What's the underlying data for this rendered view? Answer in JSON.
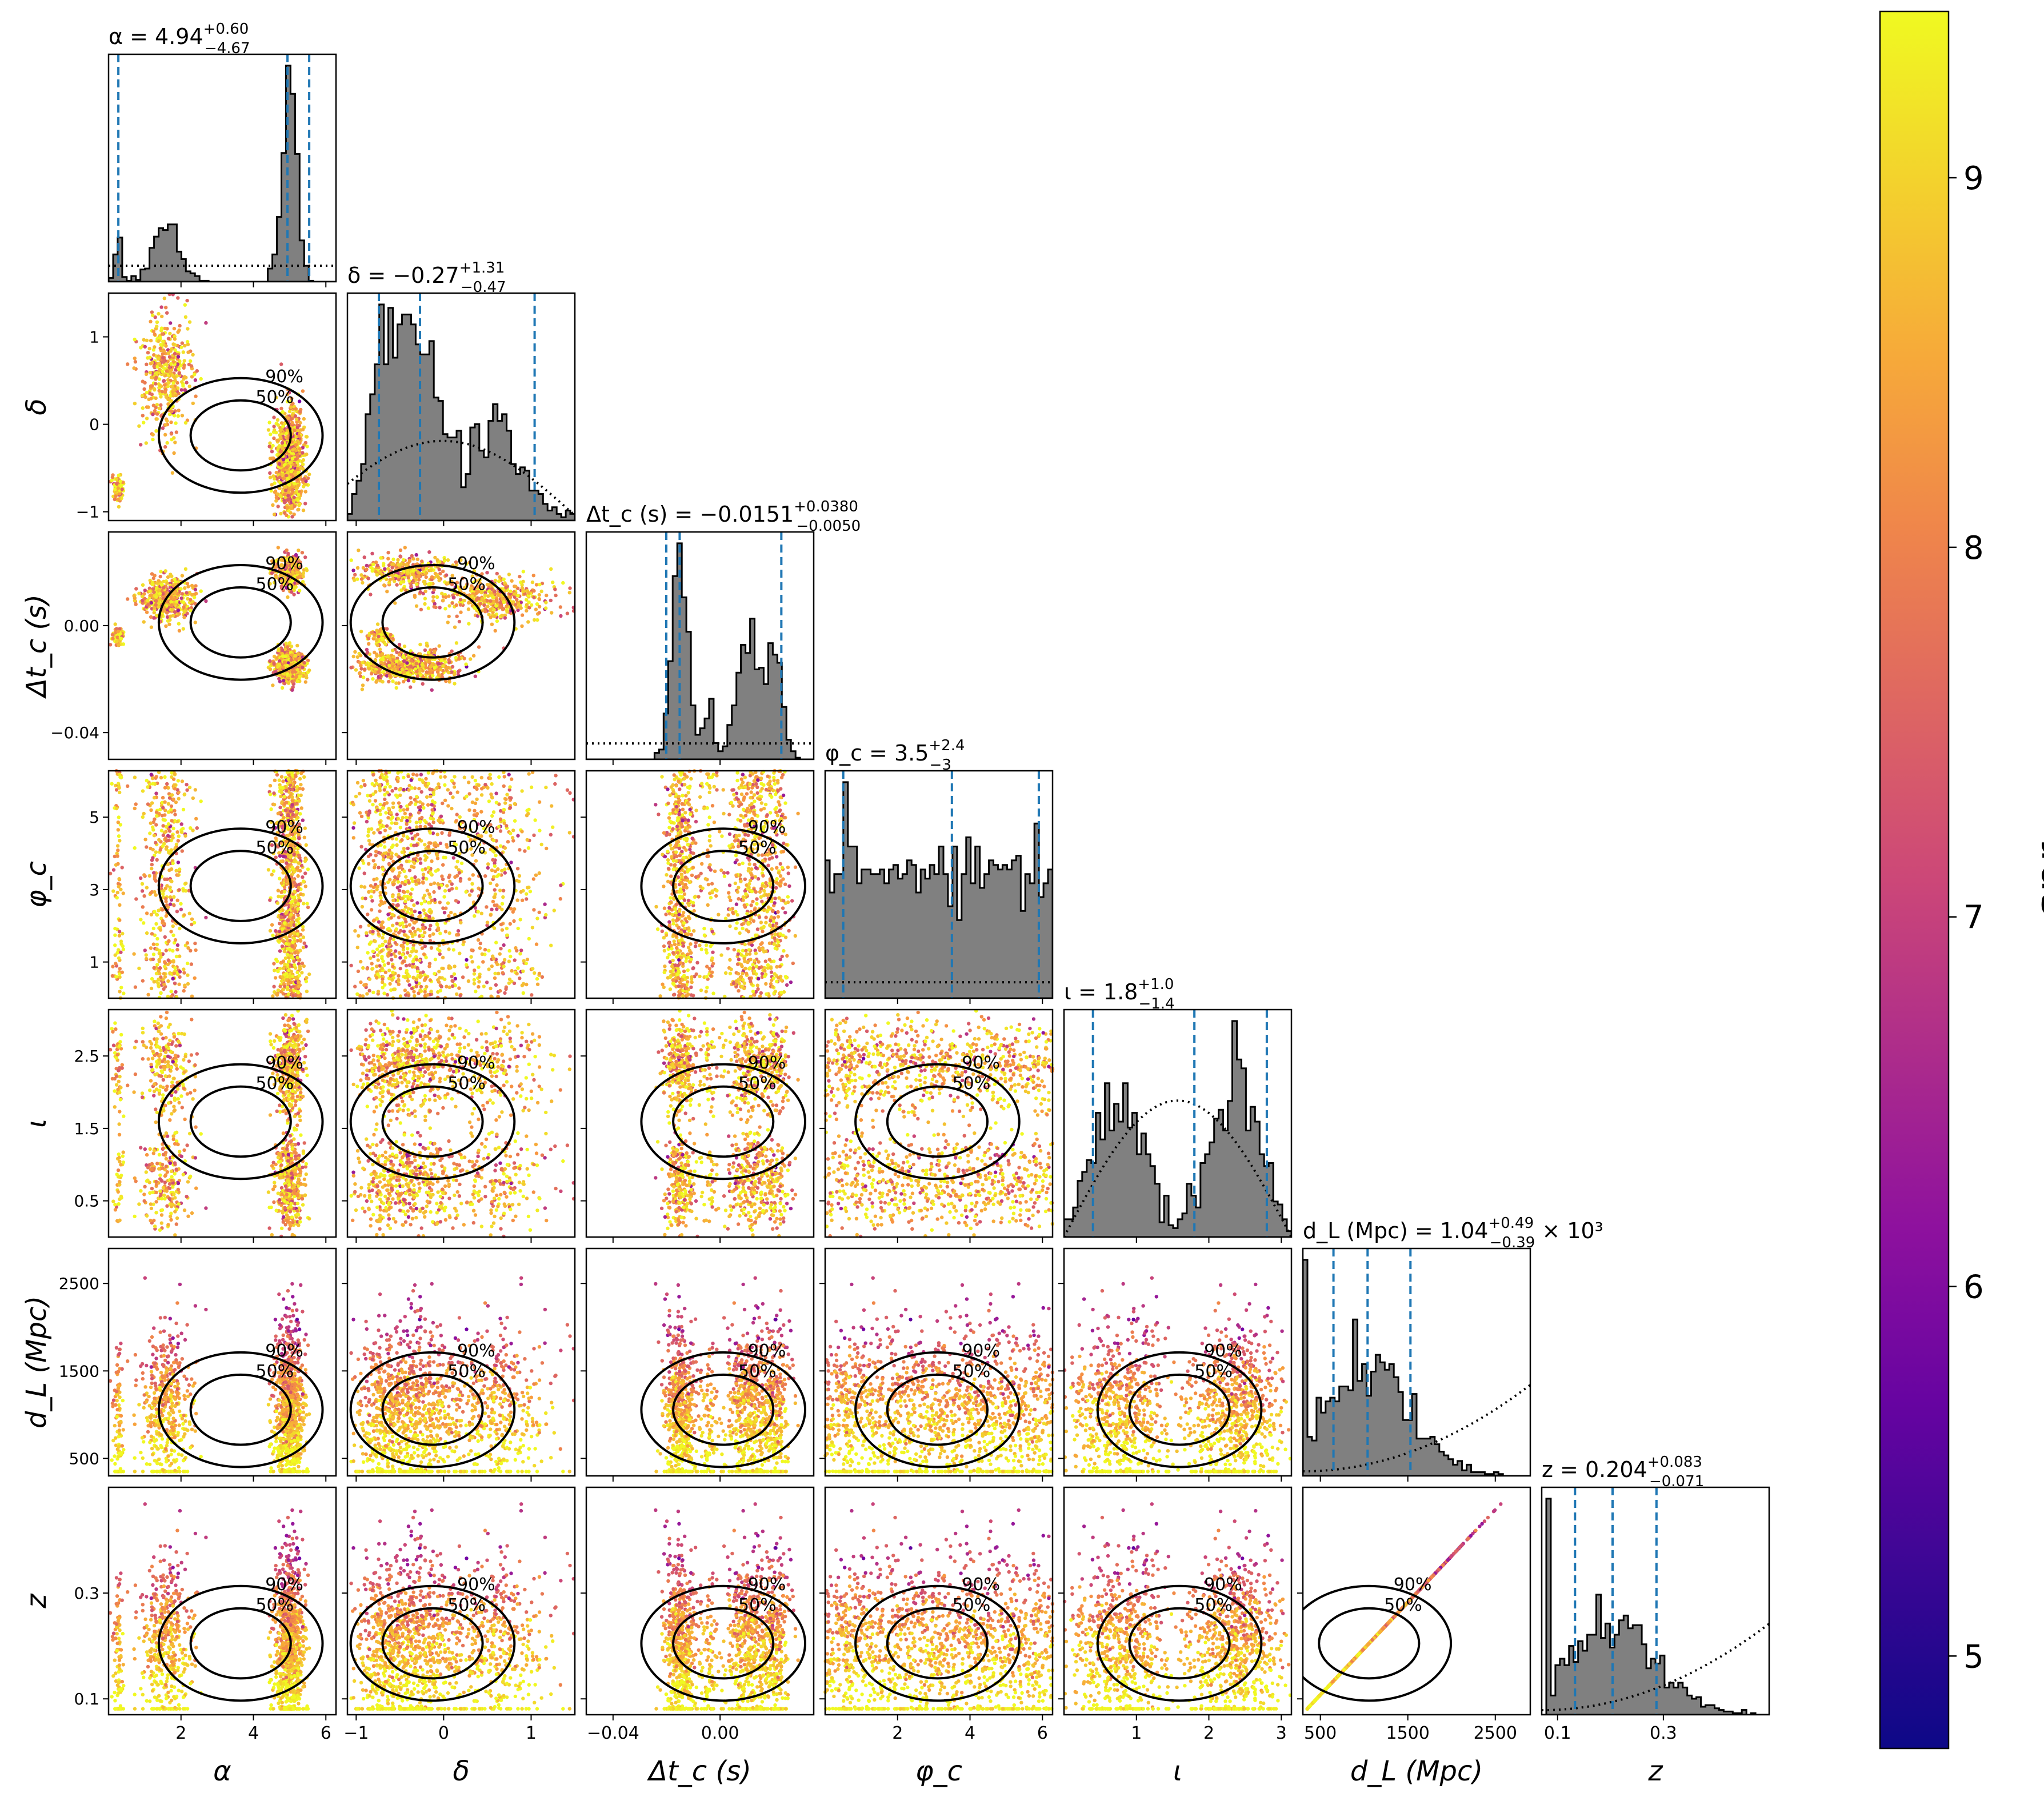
{
  "chart_data": {
    "type": "corner",
    "parameters": [
      {
        "key": "alpha",
        "axis_label": "α",
        "title_text": "α = 4.94",
        "plus": "+0.60",
        "minus": "−4.67",
        "suffix": "",
        "range": [
          0,
          6.28
        ],
        "ticks": [
          2,
          4,
          6
        ],
        "tick_labels": [
          "2",
          "4",
          "6"
        ],
        "quantiles": [
          0.27,
          4.94,
          5.54
        ],
        "prior": "flat"
      },
      {
        "key": "delta",
        "axis_label": "δ",
        "title_text": "δ = −0.27",
        "plus": "+1.31",
        "minus": "−0.47",
        "suffix": "",
        "range": [
          -1.1,
          1.5
        ],
        "ticks": [
          -1,
          0,
          1
        ],
        "tick_labels": [
          "−1",
          "0",
          "1"
        ],
        "quantiles": [
          -0.74,
          -0.27,
          1.04
        ],
        "prior": "cosine"
      },
      {
        "key": "dtc",
        "axis_label": "Δt_c (s)",
        "title_text": "Δt_c (s) = −0.0151",
        "plus": "+0.0380",
        "minus": "−0.0050",
        "suffix": "",
        "range": [
          -0.05,
          0.035
        ],
        "ticks": [
          -0.04,
          0.0
        ],
        "tick_labels": [
          "−0.04",
          "0.00"
        ],
        "quantiles": [
          -0.0201,
          -0.0151,
          0.0229
        ],
        "prior": "flat"
      },
      {
        "key": "phic",
        "axis_label": "φ_c",
        "title_text": "φ_c = 3.5",
        "plus": "+2.4",
        "minus": "−3",
        "suffix": "",
        "range": [
          0,
          6.28
        ],
        "ticks": [
          2,
          4,
          6
        ],
        "tick_labels": [
          "2",
          "4",
          "6"
        ],
        "quantiles": [
          0.5,
          3.5,
          5.9
        ],
        "prior": "flat"
      },
      {
        "key": "iota",
        "axis_label": "ι",
        "title_text": "ι = 1.8",
        "plus": "+1.0",
        "minus": "−1.4",
        "suffix": "",
        "range": [
          0,
          3.14
        ],
        "ticks": [
          1,
          2,
          3
        ],
        "tick_labels": [
          "1",
          "2",
          "3"
        ],
        "quantiles": [
          0.4,
          1.8,
          2.8
        ],
        "prior": "sine"
      },
      {
        "key": "dl",
        "axis_label": "d_L (Mpc)",
        "title_text": "d_L (Mpc) = 1.04",
        "plus": "+0.49",
        "minus": "−0.39",
        "suffix": " × 10³",
        "range": [
          300,
          2900
        ],
        "ticks": [
          500,
          1500,
          2500
        ],
        "tick_labels": [
          "500",
          "1500",
          "2500"
        ],
        "quantiles": [
          650,
          1040,
          1530
        ],
        "prior": "quadratic"
      },
      {
        "key": "z",
        "axis_label": "z",
        "title_text": "z = 0.204",
        "plus": "+0.083",
        "minus": "−0.071",
        "suffix": "",
        "range": [
          0.07,
          0.5
        ],
        "ticks": [
          0.1,
          0.3
        ],
        "tick_labels": [
          "0.1",
          "0.3"
        ],
        "quantiles": [
          0.133,
          0.204,
          0.287
        ],
        "prior": "quadratic"
      }
    ],
    "y_axis_ticks": {
      "delta": {
        "ticks": [
          -1,
          0,
          1
        ],
        "tick_labels": [
          "−1",
          "0",
          "1"
        ]
      },
      "dtc": {
        "ticks": [
          -0.04,
          0.0
        ],
        "tick_labels": [
          "−0.04",
          "0.00"
        ]
      },
      "phic": {
        "ticks": [
          1,
          3,
          5
        ],
        "tick_labels": [
          "1",
          "3",
          "5"
        ]
      },
      "iota": {
        "ticks": [
          0.5,
          1.5,
          2.5
        ],
        "tick_labels": [
          "0.5",
          "1.5",
          "2.5"
        ]
      },
      "dl": {
        "ticks": [
          500,
          1500,
          2500
        ],
        "tick_labels": [
          "500",
          "1500",
          "2500"
        ]
      },
      "z": {
        "ticks": [
          0.1,
          0.3
        ],
        "tick_labels": [
          "0.1",
          "0.3"
        ]
      }
    },
    "contour_levels": [
      "50%",
      "90%"
    ],
    "colorbar": {
      "label": "snr",
      "range": [
        4.75,
        9.45
      ],
      "ticks": [
        5,
        6,
        7,
        8,
        9
      ],
      "tick_labels": [
        "5",
        "6",
        "7",
        "8",
        "9"
      ],
      "colormap": "plasma"
    },
    "colors": {
      "hist_fill": "#808080",
      "hist_edge": "#000000",
      "quantile_line": "#1f77b4",
      "contour": "#000000"
    }
  }
}
